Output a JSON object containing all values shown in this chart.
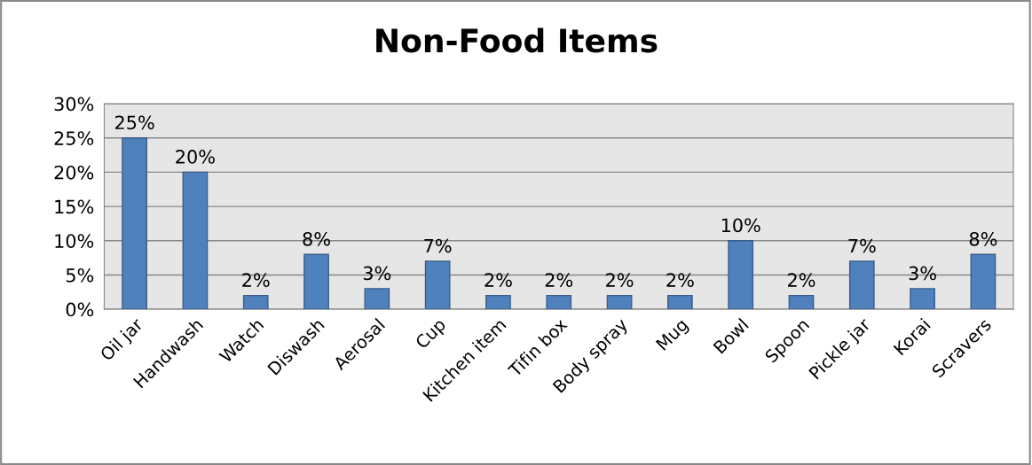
{
  "chart_data": {
    "type": "bar",
    "title": "Non-Food Items",
    "categories": [
      "Oil jar",
      "Handwash",
      "Watch",
      "Diswash",
      "Aerosal",
      "Cup",
      "Kitchen item",
      "Tifin box",
      "Body spray",
      "Mug",
      "Bowl",
      "Spoon",
      "Pickle jar",
      "Korai",
      "Scravers"
    ],
    "values": [
      25,
      20,
      2,
      8,
      3,
      7,
      2,
      2,
      2,
      2,
      10,
      2,
      7,
      3,
      8
    ],
    "value_labels": [
      "25%",
      "20%",
      "2%",
      "8%",
      "3%",
      "7%",
      "2%",
      "2%",
      "2%",
      "2%",
      "10%",
      "2%",
      "7%",
      "3%",
      "8%"
    ],
    "color": "#4f81bd",
    "ylim": [
      0,
      30
    ],
    "yticks": [
      {
        "value": 0,
        "label": "0%"
      },
      {
        "value": 5,
        "label": "5%"
      },
      {
        "value": 10,
        "label": "10%"
      },
      {
        "value": 15,
        "label": "15%"
      },
      {
        "value": 20,
        "label": "20%"
      },
      {
        "value": 25,
        "label": "25%"
      },
      {
        "value": 30,
        "label": "30%"
      }
    ],
    "grid": "y",
    "legend": false
  }
}
